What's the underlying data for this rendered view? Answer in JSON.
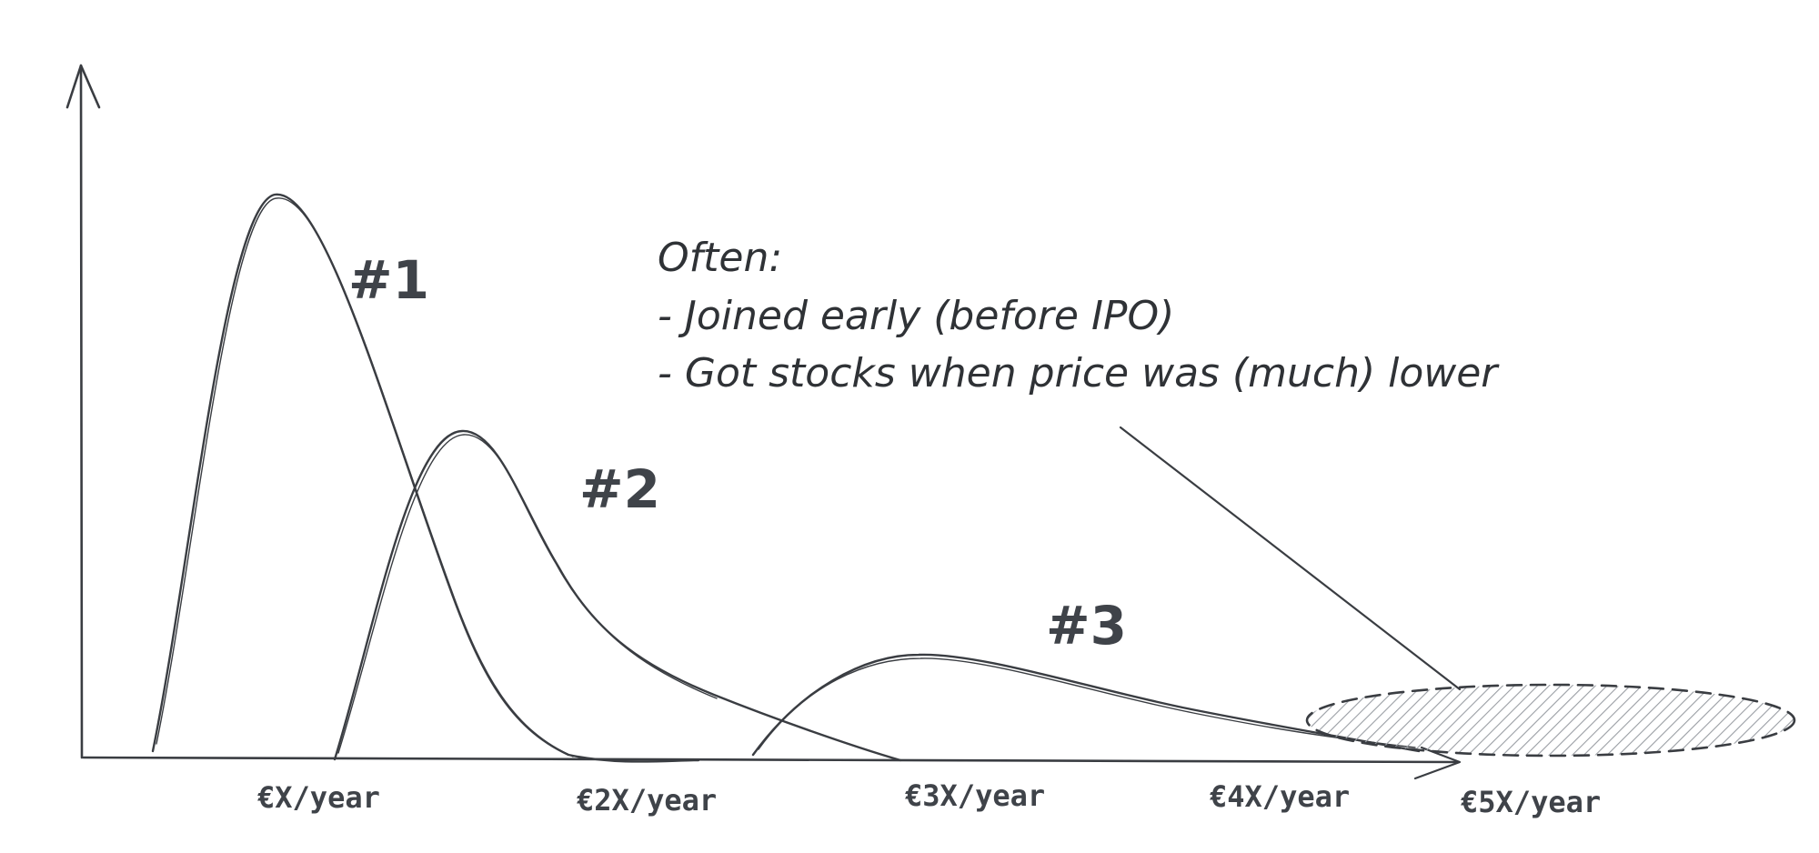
{
  "annotation": {
    "heading": "Often:",
    "lines": [
      "- Joined early (before IPO)",
      "- Got stocks when price was (much) lower"
    ]
  },
  "peaks": {
    "p1": "#1",
    "p2": "#2",
    "p3": "#3"
  },
  "x_axis": {
    "ticks": [
      "€X/year",
      "€2X/year",
      "€3X/year",
      "€4X/year",
      "€5X/year"
    ]
  },
  "colors": {
    "ink": "#3a3d42",
    "text": "#3f4349",
    "hatch": "#9a9ea4"
  }
}
